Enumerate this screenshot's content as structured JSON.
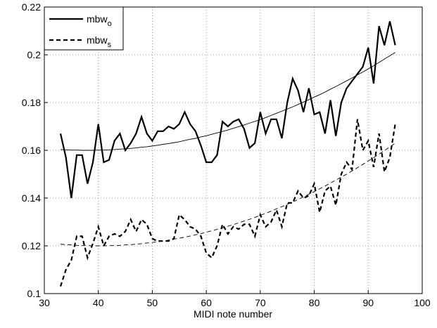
{
  "chart_data": {
    "type": "line",
    "xlabel": "MIDI note number",
    "x": [
      33,
      34,
      35,
      36,
      37,
      38,
      39,
      40,
      41,
      42,
      43,
      44,
      45,
      46,
      47,
      48,
      49,
      50,
      51,
      52,
      53,
      54,
      55,
      56,
      57,
      58,
      59,
      60,
      61,
      62,
      63,
      64,
      65,
      66,
      67,
      68,
      69,
      70,
      71,
      72,
      73,
      74,
      75,
      76,
      77,
      78,
      79,
      80,
      81,
      82,
      83,
      84,
      85,
      86,
      87,
      88,
      89,
      90,
      91,
      92,
      93,
      94,
      95
    ],
    "series": [
      {
        "name": "mbw",
        "name_sub": "o",
        "color": "#000000",
        "dash": false,
        "width": 2.2,
        "values": [
          0.167,
          0.157,
          0.14,
          0.158,
          0.158,
          0.146,
          0.155,
          0.171,
          0.155,
          0.156,
          0.164,
          0.167,
          0.16,
          0.163,
          0.167,
          0.174,
          0.167,
          0.164,
          0.168,
          0.168,
          0.17,
          0.169,
          0.171,
          0.176,
          0.171,
          0.168,
          0.162,
          0.155,
          0.155,
          0.158,
          0.172,
          0.17,
          0.172,
          0.173,
          0.169,
          0.161,
          0.163,
          0.176,
          0.167,
          0.173,
          0.173,
          0.165,
          0.18,
          0.19,
          0.185,
          0.176,
          0.186,
          0.175,
          0.176,
          0.167,
          0.181,
          0.166,
          0.18,
          0.186,
          0.189,
          0.192,
          0.195,
          0.203,
          0.188,
          0.212,
          0.204,
          0.214,
          0.204
        ]
      },
      {
        "name": "mbw",
        "name_sub": "s",
        "color": "#000000",
        "dash": true,
        "width": 2.2,
        "values": [
          0.103,
          0.11,
          0.114,
          0.124,
          0.124,
          0.115,
          0.121,
          0.128,
          0.12,
          0.124,
          0.125,
          0.124,
          0.126,
          0.131,
          0.126,
          0.131,
          0.129,
          0.123,
          0.122,
          0.122,
          0.122,
          0.123,
          0.133,
          0.131,
          0.128,
          0.127,
          0.124,
          0.117,
          0.115,
          0.12,
          0.129,
          0.125,
          0.128,
          0.127,
          0.129,
          0.129,
          0.124,
          0.133,
          0.128,
          0.13,
          0.135,
          0.128,
          0.138,
          0.138,
          0.143,
          0.14,
          0.141,
          0.146,
          0.134,
          0.143,
          0.145,
          0.137,
          0.15,
          0.155,
          0.152,
          0.173,
          0.16,
          0.164,
          0.153,
          0.167,
          0.151,
          0.157,
          0.171
        ]
      },
      {
        "color": "#000000",
        "dash": false,
        "width": 0.9,
        "values": [
          0.1603,
          0.1602,
          0.1601,
          0.1601,
          0.16,
          0.16,
          0.16,
          0.1601,
          0.1601,
          0.1602,
          0.1603,
          0.1605,
          0.1606,
          0.1608,
          0.161,
          0.1613,
          0.1615,
          0.1618,
          0.1621,
          0.1625,
          0.1628,
          0.1632,
          0.1636,
          0.1641,
          0.1646,
          0.165,
          0.1656,
          0.1661,
          0.1667,
          0.1673,
          0.1679,
          0.1685,
          0.1692,
          0.1699,
          0.1706,
          0.1714,
          0.1721,
          0.1729,
          0.1737,
          0.1746,
          0.1755,
          0.1764,
          0.1773,
          0.1782,
          0.1792,
          0.1802,
          0.1812,
          0.1823,
          0.1833,
          0.1844,
          0.1856,
          0.1867,
          0.1879,
          0.1891,
          0.1903,
          0.1916,
          0.1928,
          0.1941,
          0.1954,
          0.1968,
          0.1982,
          0.1996,
          0.201
        ]
      },
      {
        "color": "#000000",
        "dash": true,
        "width": 0.9,
        "values": [
          0.1207,
          0.1205,
          0.1204,
          0.1202,
          0.1201,
          0.1201,
          0.12,
          0.12,
          0.12,
          0.1201,
          0.1201,
          0.1202,
          0.1204,
          0.1205,
          0.1207,
          0.1209,
          0.1212,
          0.1214,
          0.1217,
          0.122,
          0.1224,
          0.1228,
          0.1232,
          0.1236,
          0.1241,
          0.1246,
          0.1251,
          0.1257,
          0.1263,
          0.1269,
          0.1275,
          0.1282,
          0.1289,
          0.1296,
          0.1304,
          0.1311,
          0.1319,
          0.1328,
          0.1336,
          0.1345,
          0.1355,
          0.1364,
          0.1374,
          0.1384,
          0.1394,
          0.1405,
          0.1416,
          0.1427,
          0.1439,
          0.145,
          0.1463,
          0.1475,
          0.1488,
          0.15,
          0.1514,
          0.1527,
          0.1541,
          0.1555,
          0.1569,
          0.1584,
          0.1599,
          0.1614,
          0.163
        ]
      }
    ],
    "xlim": [
      30,
      100
    ],
    "xticks": [
      30,
      40,
      50,
      60,
      70,
      80,
      90,
      100
    ],
    "ylim": [
      0.1,
      0.22
    ],
    "yticks": [
      0.1,
      0.12,
      0.14,
      0.16,
      0.18,
      0.2,
      0.22
    ],
    "grid": true,
    "legend": "upper left"
  }
}
